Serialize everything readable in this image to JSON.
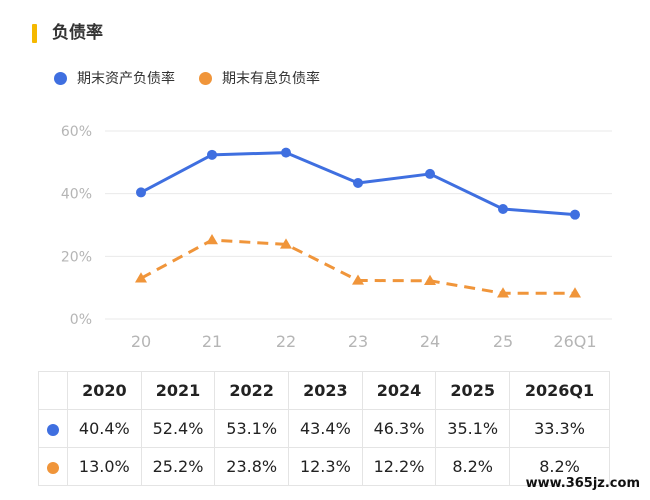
{
  "header": {
    "title": "负债率"
  },
  "colors": {
    "accent": "#f5b800",
    "series1": "#3f6fe0",
    "series2": "#f0953a"
  },
  "chart_data": {
    "type": "line",
    "x": [
      "20",
      "21",
      "22",
      "23",
      "24",
      "25",
      "26Q1"
    ],
    "series": [
      {
        "name": "期末资产负债率",
        "values": [
          40.4,
          52.4,
          53.1,
          43.4,
          46.3,
          35.1,
          33.3
        ],
        "marker": "circle",
        "style": "solid",
        "color": "#3f6fe0"
      },
      {
        "name": "期末有息负债率",
        "values": [
          13.0,
          25.2,
          23.8,
          12.3,
          12.2,
          8.2,
          8.2
        ],
        "marker": "triangle",
        "style": "dashed",
        "color": "#f0953a"
      }
    ],
    "yticks": [
      "0%",
      "20%",
      "40%",
      "60%"
    ],
    "ylim": [
      0,
      60
    ],
    "grid": true,
    "legend": "top-left"
  },
  "table": {
    "headers": [
      "2020",
      "2021",
      "2022",
      "2023",
      "2024",
      "2025",
      "2026Q1"
    ],
    "rows": [
      [
        "40.4%",
        "52.4%",
        "53.1%",
        "43.4%",
        "46.3%",
        "35.1%",
        "33.3%"
      ],
      [
        "13.0%",
        "25.2%",
        "23.8%",
        "12.3%",
        "12.2%",
        "8.2%",
        "8.2%"
      ]
    ]
  },
  "watermark": "www.365jz.com"
}
